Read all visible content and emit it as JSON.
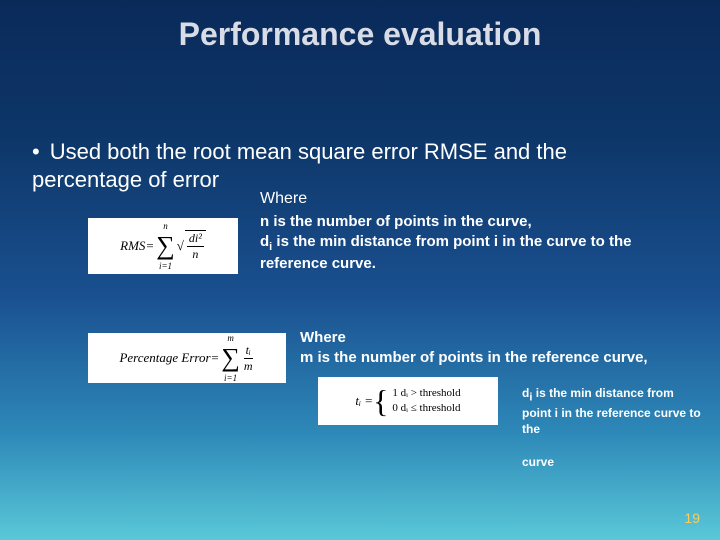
{
  "slide": {
    "title": "Performance evaluation",
    "bullet": "Used both the root mean square error RMSE and the percentage of error",
    "where1": "Where",
    "formula1": {
      "lhs": "RMS",
      "eq": " = ",
      "sum_upper": "n",
      "sum_lower": "i=1",
      "sqrt_num": "di²",
      "sqrt_den": "n"
    },
    "desc1_line1": "n is the number of points in the curve,",
    "desc1_line2": "d",
    "desc1_sub": "i",
    "desc1_line2b": " is the min distance from point i in the curve to the reference curve.",
    "formula2": {
      "lhs": "Percentage Error",
      "eq": " = ",
      "sum_upper": "m",
      "sum_lower": "i=1",
      "frac_num": "tᵢ",
      "frac_den": "m"
    },
    "where2_label": "Where",
    "where2_line": "m is the number of points in the reference curve,",
    "formula3": {
      "lhs": "tᵢ = ",
      "case1": "1   dᵢ > threshold",
      "case2": "0   dᵢ ≤ threshold"
    },
    "desc3_part1": "d",
    "desc3_sub": "i",
    "desc3_part2": " is the min distance from point i in the reference curve to the",
    "desc3_part3": "curve",
    "page_number": "19",
    "colors": {
      "title_color": "#d8dce6",
      "text_color": "#ffffff",
      "formula_bg": "#ffffff",
      "formula_fg": "#000000",
      "pagenum_color": "#f5d060",
      "gradient_top": "#0a2a5a",
      "gradient_bottom": "#5ac8d8"
    }
  }
}
